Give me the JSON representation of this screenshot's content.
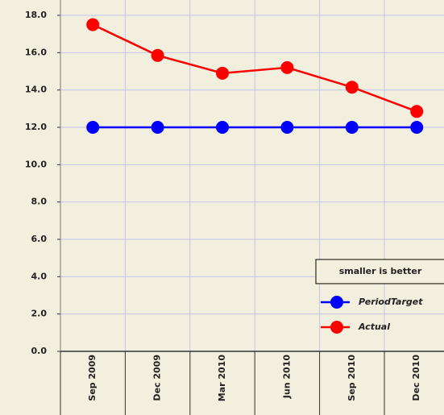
{
  "chart_data": {
    "type": "line",
    "annotation": "smaller is better",
    "categories": [
      "Sep 2009",
      "Dec 2009",
      "Mar 2010",
      "Jun 2010",
      "Sep 2010",
      "Dec 2010"
    ],
    "series": [
      {
        "name": "PeriodTarget",
        "color": "#0000ff",
        "values": [
          12,
          12,
          12,
          12,
          12,
          12
        ]
      },
      {
        "name": "Actual",
        "color": "#ff0000",
        "values": [
          17.5,
          15.85,
          14.9,
          15.2,
          14.15,
          12.85
        ]
      }
    ],
    "ylim": [
      0,
      18
    ],
    "yticks": [
      {
        "value": 0,
        "label": "0.0"
      },
      {
        "value": 2,
        "label": "2.0"
      },
      {
        "value": 4,
        "label": "4.0"
      },
      {
        "value": 6,
        "label": "6.0"
      },
      {
        "value": 8,
        "label": "8.0"
      },
      {
        "value": 10,
        "label": "10.0"
      },
      {
        "value": 12,
        "label": "12.0"
      },
      {
        "value": 14,
        "label": "14.0"
      },
      {
        "value": 16,
        "label": "16.0"
      },
      {
        "value": 18,
        "label": "18.0"
      }
    ],
    "grid": true,
    "legend": "lower right"
  }
}
